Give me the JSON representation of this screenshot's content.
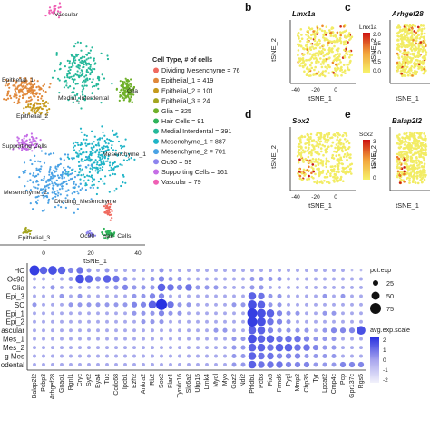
{
  "figure": {
    "panels": [
      "b",
      "c",
      "d",
      "e"
    ]
  },
  "chart_data": [
    {
      "type": "scatter",
      "id": "tsne_celltypes",
      "xlabel": "tSNE_1",
      "ylabel": "",
      "xlim": [
        -40,
        45
      ],
      "xticks": [
        "0",
        "20",
        "40"
      ],
      "legend_title": "Cell Type, # of cells",
      "legend": [
        {
          "label": "Dividing Mesenchyme = 76",
          "color": "#f06a5f"
        },
        {
          "label": "Epithelial_1 = 419",
          "color": "#e0883a"
        },
        {
          "label": "Epithelial_2 = 101",
          "color": "#c59a1c"
        },
        {
          "label": "Epithelial_3 = 24",
          "color": "#a3a51f"
        },
        {
          "label": "Glia = 325",
          "color": "#6fb02a"
        },
        {
          "label": "Hair Cells = 91",
          "color": "#2fb35a"
        },
        {
          "label": "Medial Interdental = 391",
          "color": "#25b89a"
        },
        {
          "label": "Mesenchyme_1 = 887",
          "color": "#1fb4c7"
        },
        {
          "label": "Mesenchyme_2 = 701",
          "color": "#4aa2e5"
        },
        {
          "label": "Oc90 = 59",
          "color": "#8d84ee"
        },
        {
          "label": "Supporting Cells = 161",
          "color": "#c56ee6"
        },
        {
          "label": "Vascular = 79",
          "color": "#ef5fb4"
        }
      ],
      "cluster_labels": [
        "Vascular",
        "Medial_Interdental",
        "Epithelial_1",
        "Glia",
        "Epithelial_2",
        "Supporting Cells",
        "Mesenchyme_1",
        "Mesenchyme_2",
        "Dividing_Mesenchyme",
        "Epithelial_3",
        "Oc90",
        "Hair_Cells"
      ]
    },
    {
      "type": "scatter",
      "id": "feature_plots",
      "plots": [
        {
          "panel": "b",
          "gene": "Lmx1a",
          "legend_title": "Lmx1a",
          "scale": [
            "2.0",
            "1.5",
            "1.0",
            "0.5",
            "0.0"
          ]
        },
        {
          "panel": "c",
          "gene": "Arhgef28"
        },
        {
          "panel": "d",
          "gene": "Sox2",
          "legend_title": "Sox2",
          "scale": [
            "3",
            "2",
            "1",
            "0"
          ]
        },
        {
          "panel": "e",
          "gene": "Balap2l2"
        }
      ],
      "xlabel": "tSNE_1",
      "ylabel": "tSNE_2",
      "xticks": [
        "-40",
        "-20",
        "0",
        "20",
        "40"
      ]
    },
    {
      "type": "scatter",
      "id": "dotplot",
      "rows": [
        "HC",
        "Oc90",
        "Glia",
        "Epi_3",
        "SC",
        "Epi_1",
        "Epi_2",
        "ascular",
        "Mes_1",
        "Mes_2",
        "g Mes",
        "odental"
      ],
      "genes": [
        "Balap2l2",
        "Pcbp3",
        "Arhgef28",
        "Gnao1",
        "Rgnl1",
        "Cryc",
        "Syt2",
        "Eya4",
        "Tuc",
        "Ccdc68",
        "Ipcb1",
        "Ezh2",
        "Ankra2",
        "Rb2",
        "Sox2",
        "Flar4",
        "Tyndc16",
        "Slc6a2",
        "Ubp15",
        "Lrnk4",
        "Myol",
        "Myo",
        "Gaz2",
        "Ndi2",
        "Phldb1",
        "Pcb3",
        "Fix5",
        "Frmd6",
        "Pygl",
        "Mmp2",
        "Cbp35",
        "Tyr",
        "Lpcat2",
        "Cmp4c",
        "Pcp",
        "Gpr137c",
        "Rgs5"
      ],
      "values": [
        [
          0.8,
          0.6,
          0.7,
          0.6,
          0.4,
          0.5,
          0.3,
          0.2,
          0.3,
          0.2,
          0.2,
          0.2,
          0.2,
          0.2,
          0.3,
          0.2,
          0.2,
          0.2,
          0.2,
          0.2,
          0.2,
          0.2,
          0.2,
          0.2,
          0.2,
          0.2,
          0.2,
          0.2,
          0.2,
          0.2,
          0.2,
          0.2,
          0.2,
          0.2,
          0.2,
          0.1,
          0.1
        ],
        [
          0.2,
          0.2,
          0.1,
          0.2,
          0.3,
          0.7,
          0.6,
          0.4,
          0.6,
          0.5,
          0.3,
          0.2,
          0.2,
          0.3,
          0.4,
          0.3,
          0.3,
          0.2,
          0.2,
          0.2,
          0.2,
          0.2,
          0.2,
          0.2,
          0.3,
          0.3,
          0.3,
          0.3,
          0.2,
          0.2,
          0.2,
          0.2,
          0.2,
          0.2,
          0.2,
          0.2,
          0.2
        ],
        [
          0.2,
          0.2,
          0.3,
          0.2,
          0.2,
          0.2,
          0.2,
          0.2,
          0.2,
          0.3,
          0.4,
          0.3,
          0.3,
          0.3,
          0.6,
          0.5,
          0.4,
          0.5,
          0.3,
          0.3,
          0.3,
          0.2,
          0.2,
          0.2,
          0.3,
          0.3,
          0.2,
          0.2,
          0.2,
          0.2,
          0.2,
          0.2,
          0.2,
          0.2,
          0.2,
          0.2,
          0.2
        ],
        [
          0.2,
          0.2,
          0.2,
          0.3,
          0.2,
          0.3,
          0.2,
          0.2,
          0.2,
          0.2,
          0.2,
          0.3,
          0.3,
          0.4,
          0.4,
          0.2,
          0.2,
          0.2,
          0.2,
          0.2,
          0.2,
          0.2,
          0.2,
          0.2,
          0.6,
          0.5,
          0.3,
          0.3,
          0.2,
          0.2,
          0.2,
          0.2,
          0.3,
          0.2,
          0.3,
          0.2,
          0.2
        ],
        [
          0.3,
          0.2,
          0.2,
          0.2,
          0.3,
          0.3,
          0.3,
          0.3,
          0.3,
          0.3,
          0.3,
          0.4,
          0.4,
          0.6,
          0.9,
          0.5,
          0.3,
          0.3,
          0.2,
          0.2,
          0.2,
          0.2,
          0.3,
          0.3,
          0.7,
          0.6,
          0.3,
          0.3,
          0.2,
          0.2,
          0.2,
          0.2,
          0.2,
          0.2,
          0.2,
          0.2,
          0.2
        ],
        [
          0.2,
          0.2,
          0.2,
          0.2,
          0.2,
          0.2,
          0.2,
          0.2,
          0.2,
          0.2,
          0.2,
          0.3,
          0.3,
          0.3,
          0.4,
          0.3,
          0.3,
          0.2,
          0.2,
          0.2,
          0.2,
          0.2,
          0.2,
          0.2,
          0.8,
          0.7,
          0.6,
          0.4,
          0.3,
          0.3,
          0.2,
          0.2,
          0.3,
          0.3,
          0.2,
          0.2,
          0.2
        ],
        [
          0.2,
          0.2,
          0.2,
          0.2,
          0.2,
          0.2,
          0.2,
          0.2,
          0.2,
          0.2,
          0.2,
          0.2,
          0.3,
          0.3,
          0.3,
          0.2,
          0.2,
          0.2,
          0.2,
          0.2,
          0.2,
          0.2,
          0.2,
          0.2,
          0.8,
          0.7,
          0.5,
          0.4,
          0.3,
          0.2,
          0.2,
          0.2,
          0.2,
          0.2,
          0.2,
          0.2,
          0.2
        ],
        [
          0.2,
          0.2,
          0.2,
          0.2,
          0.2,
          0.2,
          0.2,
          0.2,
          0.2,
          0.2,
          0.2,
          0.2,
          0.2,
          0.2,
          0.2,
          0.2,
          0.2,
          0.2,
          0.2,
          0.2,
          0.3,
          0.3,
          0.2,
          0.2,
          0.6,
          0.6,
          0.4,
          0.3,
          0.3,
          0.3,
          0.3,
          0.2,
          0.3,
          0.4,
          0.4,
          0.4,
          0.7
        ],
        [
          0.2,
          0.2,
          0.2,
          0.2,
          0.2,
          0.2,
          0.2,
          0.2,
          0.2,
          0.2,
          0.2,
          0.2,
          0.2,
          0.2,
          0.2,
          0.2,
          0.2,
          0.2,
          0.2,
          0.2,
          0.2,
          0.2,
          0.3,
          0.3,
          0.7,
          0.6,
          0.6,
          0.5,
          0.5,
          0.5,
          0.4,
          0.3,
          0.3,
          0.3,
          0.2,
          0.2,
          0.2
        ],
        [
          0.2,
          0.2,
          0.2,
          0.2,
          0.2,
          0.2,
          0.2,
          0.2,
          0.2,
          0.2,
          0.2,
          0.2,
          0.2,
          0.2,
          0.2,
          0.2,
          0.2,
          0.2,
          0.2,
          0.2,
          0.2,
          0.2,
          0.3,
          0.3,
          0.6,
          0.6,
          0.5,
          0.6,
          0.6,
          0.5,
          0.5,
          0.4,
          0.3,
          0.3,
          0.2,
          0.2,
          0.2
        ],
        [
          0.2,
          0.2,
          0.2,
          0.2,
          0.2,
          0.2,
          0.2,
          0.2,
          0.2,
          0.2,
          0.2,
          0.2,
          0.2,
          0.2,
          0.2,
          0.2,
          0.2,
          0.2,
          0.2,
          0.2,
          0.2,
          0.2,
          0.3,
          0.3,
          0.6,
          0.5,
          0.5,
          0.4,
          0.4,
          0.4,
          0.3,
          0.3,
          0.3,
          0.3,
          0.2,
          0.2,
          0.2
        ],
        [
          0.2,
          0.2,
          0.2,
          0.2,
          0.2,
          0.2,
          0.2,
          0.2,
          0.2,
          0.2,
          0.2,
          0.2,
          0.2,
          0.2,
          0.2,
          0.2,
          0.2,
          0.2,
          0.2,
          0.2,
          0.2,
          0.2,
          0.3,
          0.3,
          0.6,
          0.5,
          0.5,
          0.5,
          0.4,
          0.4,
          0.4,
          0.3,
          0.3,
          0.3,
          0.4,
          0.4,
          0.4
        ]
      ],
      "size_legend_title": "pct.exp",
      "size_legend": [
        "25",
        "50",
        "75"
      ],
      "size_legend_values": [
        25,
        50,
        75
      ],
      "color_legend_title": "avg.exp.scale",
      "color_legend": [
        "2",
        "1",
        "0",
        "-1",
        "-2"
      ]
    }
  ]
}
